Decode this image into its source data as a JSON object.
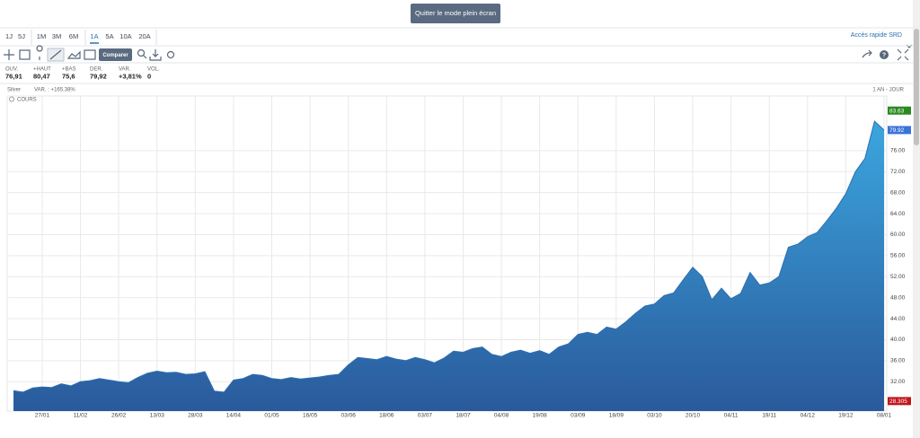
{
  "ui": {
    "exit_button": "Quitter le mode plein écran",
    "periods": [
      "1J",
      "5J",
      "1M",
      "3M",
      "6M",
      "1A",
      "5A",
      "10A",
      "20A"
    ],
    "selected_period": "1A",
    "quick_access": "Accès rapide SRD",
    "compare": "Comparer",
    "stats": [
      {
        "label": "OUV.",
        "value": "76,91"
      },
      {
        "label": "+HAUT",
        "value": "80,47"
      },
      {
        "label": "+BAS",
        "value": "75,6"
      },
      {
        "label": "DER.",
        "value": "79,92"
      },
      {
        "label": "VAR.",
        "value": "+3,81%"
      },
      {
        "label": "VOL.",
        "value": "0"
      }
    ],
    "instrument": "Silver",
    "variation": "VAR. : +165.38%",
    "period_label": "1 AN - JOUR"
  },
  "chart_data": {
    "type": "area",
    "categories": [
      null,
      null,
      null,
      "27/01",
      null,
      null,
      null,
      "11/02",
      null,
      null,
      null,
      "26/02",
      null,
      null,
      null,
      "13/03",
      null,
      null,
      null,
      "28/03",
      null,
      null,
      null,
      "14/04",
      null,
      null,
      null,
      "01/05",
      null,
      null,
      null,
      "16/05",
      null,
      null,
      null,
      "03/06",
      null,
      null,
      null,
      "18/06",
      null,
      null,
      null,
      "03/07",
      null,
      null,
      null,
      "18/07",
      null,
      null,
      null,
      "04/08",
      null,
      null,
      null,
      "19/08",
      null,
      null,
      null,
      "03/09",
      null,
      null,
      null,
      "18/09",
      null,
      null,
      null,
      "03/10",
      null,
      null,
      null,
      "20/10",
      null,
      null,
      null,
      "04/11",
      null,
      null,
      null,
      "19/11",
      null,
      null,
      null,
      "04/12",
      null,
      null,
      null,
      "19/12",
      null,
      null,
      null,
      "08/01"
    ],
    "series": [
      {
        "name": "COURS",
        "color": "#2d6fb3",
        "values": [
          30.3,
          30.0,
          30.8,
          31.0,
          30.9,
          31.6,
          31.2,
          32.0,
          32.2,
          32.6,
          32.3,
          32.0,
          31.8,
          32.8,
          33.6,
          34.0,
          33.7,
          33.8,
          33.4,
          33.5,
          33.9,
          30.2,
          30.0,
          32.3,
          32.6,
          33.4,
          33.2,
          32.6,
          32.4,
          32.8,
          32.5,
          32.7,
          32.9,
          33.2,
          33.4,
          35.2,
          36.6,
          36.4,
          36.2,
          36.8,
          36.3,
          36.0,
          36.6,
          36.2,
          35.6,
          36.5,
          37.8,
          37.6,
          38.3,
          38.6,
          37.2,
          36.8,
          37.6,
          38.0,
          37.4,
          37.9,
          37.2,
          38.6,
          39.2,
          41.0,
          41.4,
          41.0,
          42.4,
          42.0,
          43.4,
          45.0,
          46.4,
          46.8,
          48.4,
          48.9,
          51.4,
          53.8,
          52.0,
          47.6,
          49.8,
          47.8,
          48.8,
          52.8,
          50.4,
          50.8,
          52.0,
          57.6,
          58.2,
          59.6,
          60.4,
          62.6,
          65.0,
          67.8,
          72.0,
          74.5,
          81.6,
          79.92
        ]
      }
    ],
    "gradient": [
      "#3ba6de",
      "#2a5a9c"
    ],
    "ylim": [
      26.4,
      86.4
    ],
    "yticks": [
      {
        "value": 32,
        "label": "32.00"
      },
      {
        "value": 36,
        "label": "36.00"
      },
      {
        "value": 40,
        "label": "40.00"
      },
      {
        "value": 44,
        "label": "44.00"
      },
      {
        "value": 48,
        "label": "48.00"
      },
      {
        "value": 52,
        "label": "52.00"
      },
      {
        "value": 56,
        "label": "56.00"
      },
      {
        "value": 60,
        "label": "60.00"
      },
      {
        "value": 64,
        "label": "64.00"
      },
      {
        "value": 68,
        "label": "68.00"
      },
      {
        "value": 72,
        "label": "72.00"
      },
      {
        "value": 76,
        "label": "76.00"
      }
    ],
    "markers": [
      {
        "value": 83.63,
        "color": "#2a8a1f"
      },
      {
        "value": 79.92,
        "color": "#3b73d9"
      },
      {
        "value": 28.305,
        "color": "#c0151b"
      }
    ],
    "grid": true
  }
}
